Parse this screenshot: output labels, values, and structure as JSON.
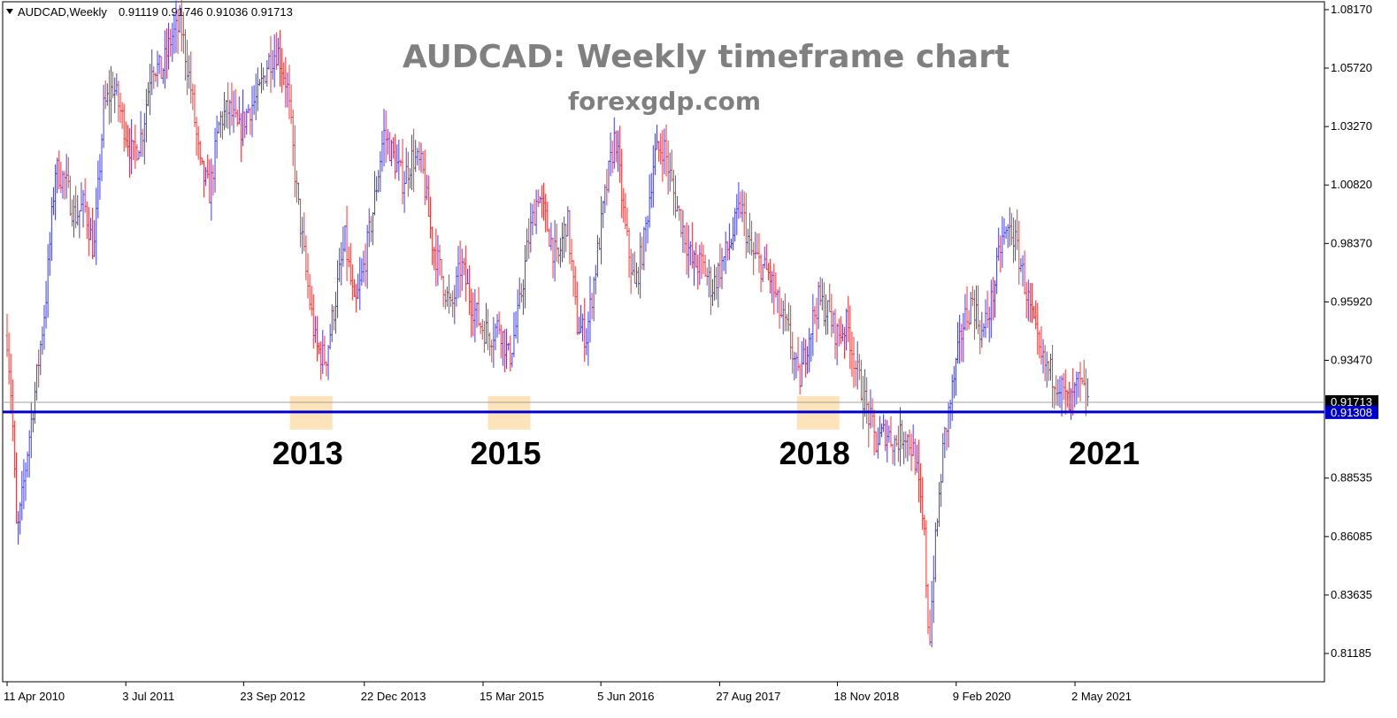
{
  "header": {
    "symbol_label": "AUDCAD,Weekly",
    "ohlc_label": "0.91119 0.91746 0.91036 0.91713"
  },
  "chart_data": {
    "type": "candlestick-bars",
    "symbol": "AUDCAD",
    "timeframe": "Weekly",
    "ohlc": {
      "open": 0.91119,
      "high": 0.91746,
      "low": 0.91036,
      "close": 0.91713
    },
    "title": "AUDCAD: Weekly timeframe chart",
    "subtitle": "forexgdp.com",
    "ylim": [
      0.8,
      1.085
    ],
    "y_ticks": [
      1.0817,
      1.0572,
      1.0327,
      1.0082,
      0.9837,
      0.9592,
      0.9347,
      0.88535,
      0.86085,
      0.83635,
      0.81185
    ],
    "x_ticks": [
      {
        "label": "11 Apr 2010",
        "t": 0.0
      },
      {
        "label": "3 Jul 2011",
        "t": 1.23
      },
      {
        "label": "23 Sep 2012",
        "t": 2.45
      },
      {
        "label": "22 Dec 2013",
        "t": 3.7
      },
      {
        "label": "15 Mar 2015",
        "t": 4.93
      },
      {
        "label": "5 Jun 2016",
        "t": 6.15
      },
      {
        "label": "27 Aug 2017",
        "t": 7.38
      },
      {
        "label": "18 Nov 2018",
        "t": 8.6
      },
      {
        "label": "9 Feb 2020",
        "t": 9.83
      },
      {
        "label": "2 May 2021",
        "t": 11.06
      }
    ],
    "x_range": [
      0.0,
      14.2
    ],
    "price_line": {
      "value": 0.91713,
      "label": "0.91713",
      "color": "#000000"
    },
    "support_line": {
      "value": 0.91308,
      "label": "0.91308",
      "color": "#0000cc"
    },
    "support_touches": [
      {
        "label": "2013",
        "t": 3.15
      },
      {
        "label": "2015",
        "t": 5.2
      },
      {
        "label": "2018",
        "t": 8.4
      },
      {
        "label": "2021",
        "t": 11.4
      }
    ],
    "path": [
      [
        0.0,
        0.945
      ],
      [
        0.05,
        0.915
      ],
      [
        0.1,
        0.86
      ],
      [
        0.15,
        0.875
      ],
      [
        0.22,
        0.9
      ],
      [
        0.3,
        0.925
      ],
      [
        0.4,
        0.96
      ],
      [
        0.5,
        1.015
      ],
      [
        0.6,
        1.01
      ],
      [
        0.7,
        0.995
      ],
      [
        0.8,
        1.0
      ],
      [
        0.9,
        0.98
      ],
      [
        1.0,
        1.04
      ],
      [
        1.1,
        1.05
      ],
      [
        1.2,
        1.035
      ],
      [
        1.3,
        1.02
      ],
      [
        1.4,
        1.03
      ],
      [
        1.5,
        1.06
      ],
      [
        1.6,
        1.055
      ],
      [
        1.7,
        1.07
      ],
      [
        1.8,
        1.075
      ],
      [
        1.9,
        1.05
      ],
      [
        2.0,
        1.015
      ],
      [
        2.1,
        1.005
      ],
      [
        2.2,
        1.035
      ],
      [
        2.3,
        1.04
      ],
      [
        2.4,
        1.03
      ],
      [
        2.5,
        1.04
      ],
      [
        2.6,
        1.045
      ],
      [
        2.7,
        1.06
      ],
      [
        2.8,
        1.065
      ],
      [
        2.9,
        1.05
      ],
      [
        3.0,
        1.005
      ],
      [
        3.1,
        0.97
      ],
      [
        3.2,
        0.94
      ],
      [
        3.3,
        0.935
      ],
      [
        3.4,
        0.96
      ],
      [
        3.5,
        0.985
      ],
      [
        3.6,
        0.955
      ],
      [
        3.7,
        0.975
      ],
      [
        3.8,
        1.0
      ],
      [
        3.9,
        1.03
      ],
      [
        4.0,
        1.02
      ],
      [
        4.1,
        1.01
      ],
      [
        4.2,
        1.02
      ],
      [
        4.3,
        1.015
      ],
      [
        4.4,
        0.985
      ],
      [
        4.5,
        0.97
      ],
      [
        4.6,
        0.955
      ],
      [
        4.7,
        0.975
      ],
      [
        4.8,
        0.96
      ],
      [
        4.9,
        0.95
      ],
      [
        5.0,
        0.945
      ],
      [
        5.1,
        0.95
      ],
      [
        5.2,
        0.935
      ],
      [
        5.3,
        0.955
      ],
      [
        5.4,
        0.985
      ],
      [
        5.5,
        1.005
      ],
      [
        5.6,
        0.99
      ],
      [
        5.7,
        0.975
      ],
      [
        5.8,
        0.995
      ],
      [
        5.9,
        0.95
      ],
      [
        6.0,
        0.945
      ],
      [
        6.1,
        0.975
      ],
      [
        6.2,
        1.005
      ],
      [
        6.3,
        1.03
      ],
      [
        6.4,
        0.99
      ],
      [
        6.5,
        0.965
      ],
      [
        6.6,
        0.985
      ],
      [
        6.7,
        1.02
      ],
      [
        6.8,
        1.025
      ],
      [
        6.9,
        1.005
      ],
      [
        7.0,
        0.99
      ],
      [
        7.1,
        0.975
      ],
      [
        7.2,
        0.975
      ],
      [
        7.3,
        0.965
      ],
      [
        7.4,
        0.975
      ],
      [
        7.5,
        0.985
      ],
      [
        7.6,
        1.0
      ],
      [
        7.7,
        0.98
      ],
      [
        7.8,
        0.975
      ],
      [
        7.9,
        0.97
      ],
      [
        8.0,
        0.955
      ],
      [
        8.1,
        0.945
      ],
      [
        8.2,
        0.925
      ],
      [
        8.3,
        0.945
      ],
      [
        8.4,
        0.96
      ],
      [
        8.5,
        0.955
      ],
      [
        8.6,
        0.945
      ],
      [
        8.7,
        0.95
      ],
      [
        8.8,
        0.93
      ],
      [
        8.9,
        0.915
      ],
      [
        9.0,
        0.9
      ],
      [
        9.1,
        0.905
      ],
      [
        9.2,
        0.9
      ],
      [
        9.3,
        0.905
      ],
      [
        9.4,
        0.895
      ],
      [
        9.5,
        0.86
      ],
      [
        9.55,
        0.815
      ],
      [
        9.6,
        0.85
      ],
      [
        9.7,
        0.9
      ],
      [
        9.8,
        0.925
      ],
      [
        9.9,
        0.95
      ],
      [
        10.0,
        0.96
      ],
      [
        10.1,
        0.945
      ],
      [
        10.2,
        0.96
      ],
      [
        10.3,
        0.985
      ],
      [
        10.4,
        0.99
      ],
      [
        10.5,
        0.975
      ],
      [
        10.6,
        0.955
      ],
      [
        10.7,
        0.935
      ],
      [
        10.8,
        0.93
      ],
      [
        10.9,
        0.925
      ],
      [
        11.0,
        0.915
      ],
      [
        11.1,
        0.925
      ],
      [
        11.2,
        0.917
      ]
    ],
    "legend": "none",
    "grid": false
  }
}
